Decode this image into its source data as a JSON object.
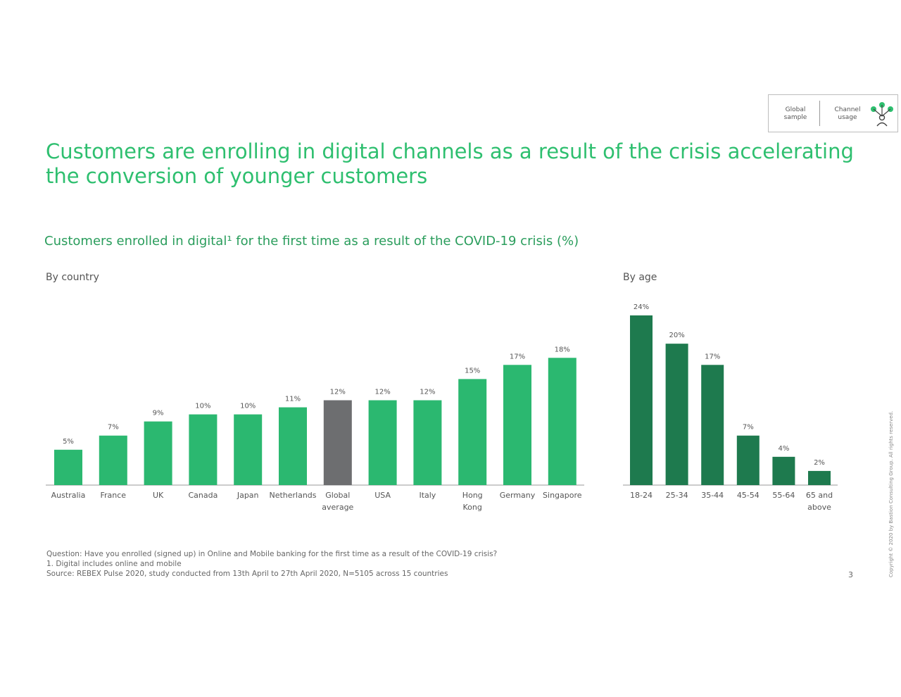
{
  "header": {
    "badge_left": [
      "Global",
      "sample"
    ],
    "badge_right": [
      "Channel",
      "usage"
    ],
    "badge_icon": "people-network-icon"
  },
  "title": "Customers are enrolling in digital channels as a result of the crisis accelerating the conversion of younger customers",
  "subtitle": "Customers enrolled in digital¹ for the first time as a result of the COVID-19 crisis (%)",
  "colors": {
    "title": "#2ebf6f",
    "country_bar": "#2bb870",
    "global_bar": "#6d6e70",
    "age_bar": "#1e7a4e"
  },
  "chart_data": [
    {
      "type": "bar",
      "title": "By country",
      "categories": [
        "Australia",
        "France",
        "UK",
        "Canada",
        "Japan",
        "Netherlands",
        "Global average",
        "USA",
        "Italy",
        "Hong Kong",
        "Germany",
        "Singapore"
      ],
      "values": [
        5,
        7,
        9,
        10,
        10,
        11,
        12,
        12,
        12,
        15,
        17,
        18
      ],
      "data_labels": [
        "5%",
        "7%",
        "9%",
        "10%",
        "10%",
        "11%",
        "12%",
        "12%",
        "12%",
        "15%",
        "17%",
        "18%"
      ],
      "highlight": "Global average",
      "xlabel": "",
      "ylabel": "",
      "ylim": [
        0,
        24
      ],
      "grid": false,
      "legend": "none"
    },
    {
      "type": "bar",
      "title": "By age",
      "categories": [
        "18-24",
        "25-34",
        "35-44",
        "45-54",
        "55-64",
        "65 and above"
      ],
      "values": [
        24,
        20,
        17,
        7,
        4,
        2
      ],
      "data_labels": [
        "24%",
        "20%",
        "17%",
        "7%",
        "4%",
        "2%"
      ],
      "xlabel": "",
      "ylabel": "",
      "ylim": [
        0,
        24
      ],
      "grid": false,
      "legend": "none"
    }
  ],
  "footnotes": [
    "Question: Have you enrolled (signed up) in Online and Mobile banking for the first time as a result of the COVID-19 crisis?",
    "1. Digital includes online and mobile",
    "Source: REBEX Pulse 2020, study conducted from 13th April to 27th April 2020, N=5105 across 15 countries"
  ],
  "page_number": "3",
  "copyright": "Copyright © 2020 by Bastion Consulting Group. All rights reserved."
}
